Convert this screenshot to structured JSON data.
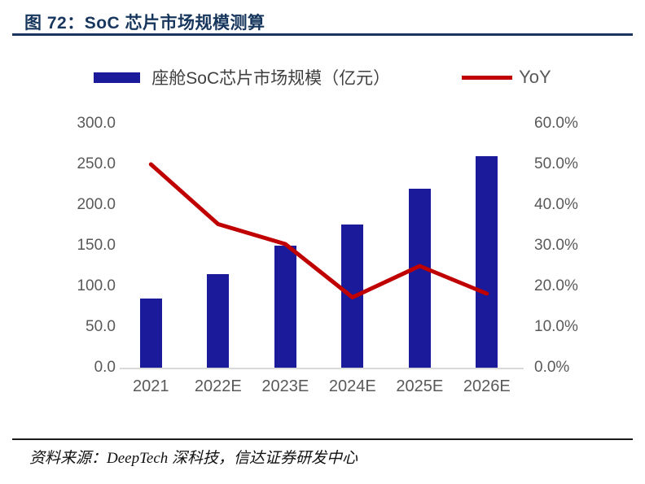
{
  "figure": {
    "title": "图 72：SoC 芯片市场规模测算",
    "source": "资料来源：DeepTech 深科技，信达证券研发中心"
  },
  "legend": {
    "bar_label": "座舱SoC芯片市场规模（亿元）",
    "line_label": "YoY"
  },
  "colors": {
    "bar": "#1A1A9B",
    "line": "#C00000",
    "title": "#17365D",
    "axis_text": "#595959",
    "baseline": "#D9D9D9"
  },
  "chart_data": {
    "type": "bar",
    "subtype": "bar-line-dual-axis",
    "categories": [
      "2021",
      "2022E",
      "2023E",
      "2024E",
      "2025E",
      "2026E"
    ],
    "series": [
      {
        "name": "座舱SoC芯片市场规模（亿元）",
        "type": "bar",
        "axis": "left",
        "values": [
          85,
          115,
          150,
          176,
          220,
          260
        ]
      },
      {
        "name": "YoY",
        "type": "line",
        "axis": "right",
        "values": [
          50.0,
          35.3,
          30.4,
          17.3,
          25.0,
          18.2
        ],
        "unit": "%"
      }
    ],
    "left_axis": {
      "ticks": [
        "300.0",
        "250.0",
        "200.0",
        "150.0",
        "100.0",
        "50.0",
        "0.0"
      ],
      "min": 0,
      "max": 300
    },
    "right_axis": {
      "ticks": [
        "60.0%",
        "50.0%",
        "40.0%",
        "30.0%",
        "20.0%",
        "10.0%",
        "0.0%"
      ],
      "min": 0,
      "max": 60
    },
    "grid": false,
    "legend_position": "top"
  }
}
